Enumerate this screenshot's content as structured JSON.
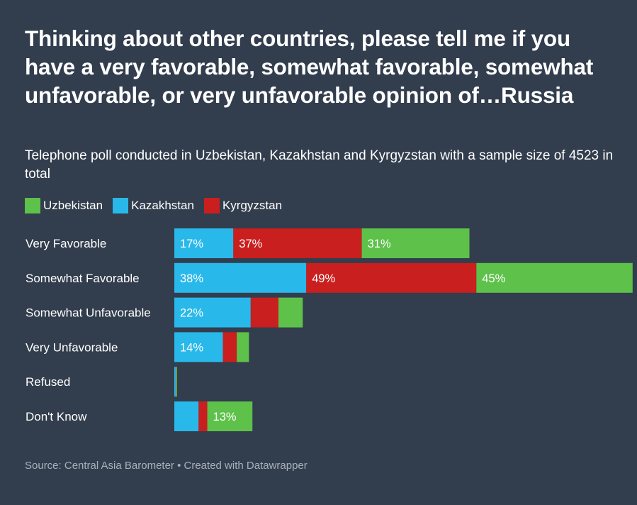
{
  "title": "Thinking about other countries, please tell me if you have a very favorable, somewhat favorable, somewhat unfavorable, or very unfavorable opinion of…Russia",
  "subtitle": "Telephone poll conducted in Uzbekistan, Kazakhstan and Kyrgyzstan with a sample size of 4523 in total",
  "source": "Source: Central Asia Barometer • Created with Datawrapper",
  "legend": [
    {
      "name": "Uzbekistan",
      "color": "#5dc14a"
    },
    {
      "name": "Kazakhstan",
      "color": "#29b8ea"
    },
    {
      "name": "Kyrgyzstan",
      "color": "#c91f1f"
    }
  ],
  "chart_data": {
    "type": "bar",
    "orientation": "horizontal",
    "stacked": true,
    "categories": [
      "Very Favorable",
      "Somewhat Favorable",
      "Somewhat Unfavorable",
      "Very Unfavorable",
      "Refused",
      "Don't Know"
    ],
    "series": [
      {
        "name": "Kazakhstan",
        "color": "#29b8ea",
        "values": [
          17,
          38,
          22,
          14,
          0.4,
          7
        ]
      },
      {
        "name": "Kyrgyzstan",
        "color": "#c91f1f",
        "values": [
          37,
          49,
          8,
          4,
          0.1,
          2.5
        ]
      },
      {
        "name": "Uzbekistan",
        "color": "#5dc14a",
        "values": [
          31,
          45,
          7,
          3.5,
          0.3,
          13
        ]
      }
    ],
    "visible_labels": [
      [
        "17%",
        "37%",
        "31%"
      ],
      [
        "38%",
        "49%",
        "45%"
      ],
      [
        "22%",
        "",
        ""
      ],
      [
        "14%",
        "",
        ""
      ],
      [
        "",
        "",
        ""
      ],
      [
        "",
        "",
        "13%"
      ]
    ],
    "grid": false,
    "legend_position": "top-left"
  }
}
